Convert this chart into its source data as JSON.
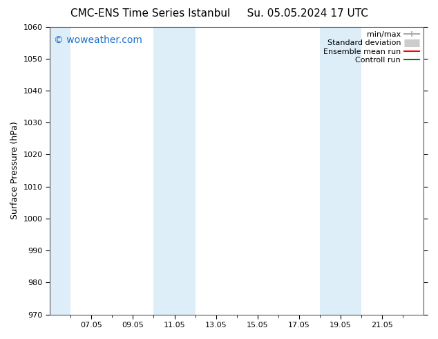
{
  "title_left": "CMC-ENS Time Series Istanbul",
  "title_right": "Su. 05.05.2024 17 UTC",
  "ylabel": "Surface Pressure (hPa)",
  "ylim": [
    970,
    1060
  ],
  "yticks": [
    970,
    980,
    990,
    1000,
    1010,
    1020,
    1030,
    1040,
    1050,
    1060
  ],
  "xtick_labels": [
    "07.05",
    "09.05",
    "11.05",
    "13.05",
    "15.05",
    "17.05",
    "19.05",
    "21.05"
  ],
  "xtick_positions": [
    2,
    4,
    6,
    8,
    10,
    12,
    14,
    16
  ],
  "xlim": [
    0,
    18
  ],
  "shaded_bands": [
    {
      "xmin": 0.0,
      "xmax": 1.0,
      "color": "#ddeef8"
    },
    {
      "xmin": 5.0,
      "xmax": 7.0,
      "color": "#ddeef8"
    },
    {
      "xmin": 13.0,
      "xmax": 15.0,
      "color": "#ddeef8"
    }
  ],
  "watermark_text": "© woweather.com",
  "watermark_color": "#1a6fcc",
  "watermark_fontsize": 10,
  "legend_entries": [
    {
      "label": "min/max",
      "color": "#aaaaaa",
      "lw": 1.5,
      "ls": "-",
      "type": "line_with_caps"
    },
    {
      "label": "Standard deviation",
      "color": "#cccccc",
      "lw": 8,
      "ls": "-",
      "type": "thick_line"
    },
    {
      "label": "Ensemble mean run",
      "color": "#ff0000",
      "lw": 1.5,
      "ls": "-",
      "type": "line"
    },
    {
      "label": "Controll run",
      "color": "#008000",
      "lw": 1.5,
      "ls": "-",
      "type": "line"
    }
  ],
  "bg_color": "#ffffff",
  "title_fontsize": 11,
  "axis_label_fontsize": 9,
  "tick_fontsize": 8,
  "legend_fontsize": 8
}
